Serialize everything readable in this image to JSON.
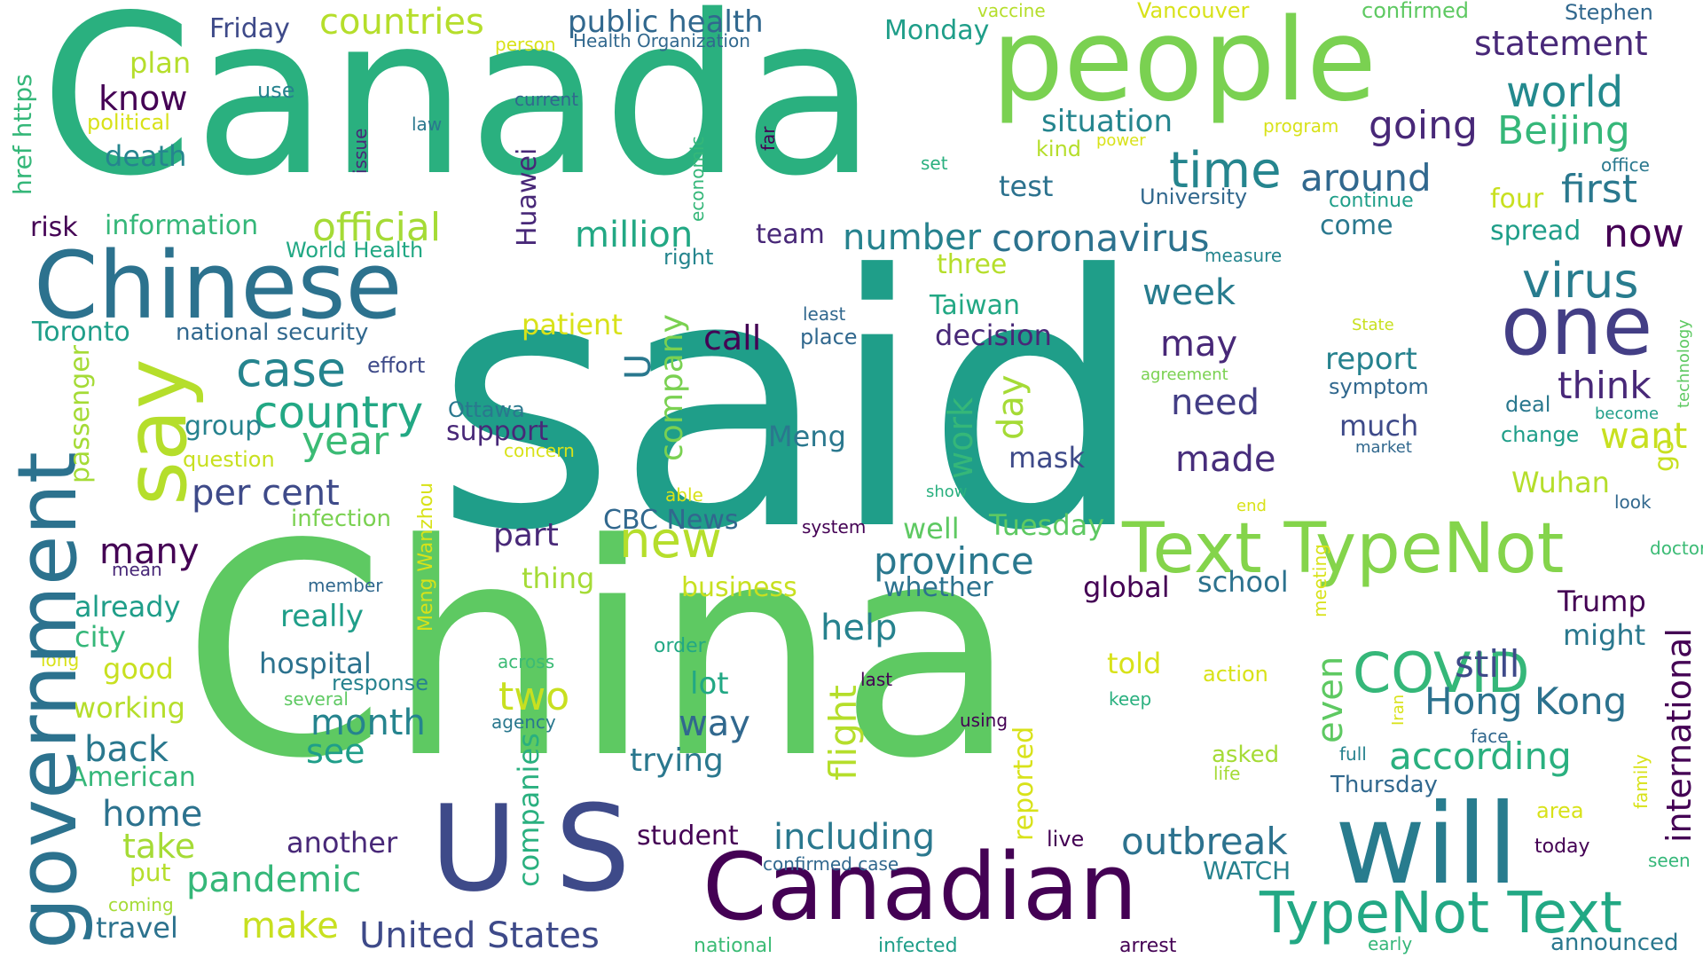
{
  "palette": {
    "p1": "#440154",
    "p2": "#482878",
    "p3": "#3e4a89",
    "p4": "#31688e",
    "p5": "#26828e",
    "p6": "#1f9e89",
    "p7": "#35b779",
    "p8": "#6ece58",
    "p9": "#b5de2b",
    "p10": "#d8e219"
  },
  "words": [
    {
      "text": "said"
    },
    {
      "text": "China"
    },
    {
      "text": "Canada"
    },
    {
      "text": "people"
    },
    {
      "text": "Chinese"
    },
    {
      "text": "government"
    },
    {
      "text": "say"
    },
    {
      "text": "one"
    },
    {
      "text": "will"
    },
    {
      "text": "U S"
    },
    {
      "text": "Canadian"
    },
    {
      "text": "Text TypeNot"
    },
    {
      "text": "TypeNot Text"
    },
    {
      "text": "COVID"
    },
    {
      "text": "new"
    },
    {
      "text": "time"
    },
    {
      "text": "case"
    },
    {
      "text": "country"
    },
    {
      "text": "virus"
    },
    {
      "text": "world"
    },
    {
      "text": "statement"
    },
    {
      "text": "Beijing"
    },
    {
      "text": "going"
    },
    {
      "text": "around"
    },
    {
      "text": "first"
    },
    {
      "text": "now"
    },
    {
      "text": "coronavirus"
    },
    {
      "text": "official"
    },
    {
      "text": "countries"
    },
    {
      "text": "public health"
    },
    {
      "text": "Friday"
    },
    {
      "text": "Monday"
    },
    {
      "text": "know"
    },
    {
      "text": "plan"
    },
    {
      "text": "death"
    },
    {
      "text": "year"
    },
    {
      "text": "per cent"
    },
    {
      "text": "many"
    },
    {
      "text": "million"
    },
    {
      "text": "number"
    },
    {
      "text": "province"
    },
    {
      "text": "Hong Kong"
    },
    {
      "text": "outbreak"
    },
    {
      "text": "including"
    },
    {
      "text": "United States"
    },
    {
      "text": "pandemic"
    },
    {
      "text": "month"
    },
    {
      "text": "back"
    },
    {
      "text": "home"
    },
    {
      "text": "two"
    },
    {
      "text": "see"
    },
    {
      "text": "make"
    },
    {
      "text": "take"
    },
    {
      "text": "help"
    },
    {
      "text": "part"
    },
    {
      "text": "made"
    },
    {
      "text": "need"
    },
    {
      "text": "may"
    },
    {
      "text": "week"
    },
    {
      "text": "think"
    },
    {
      "text": "want"
    },
    {
      "text": "still"
    },
    {
      "text": "according"
    },
    {
      "text": "situation"
    },
    {
      "text": "test"
    },
    {
      "text": "risk"
    },
    {
      "text": "information"
    },
    {
      "text": "Toronto"
    },
    {
      "text": "national security"
    },
    {
      "text": "World Health"
    },
    {
      "text": "Health Organization"
    },
    {
      "text": "call"
    },
    {
      "text": "decision"
    },
    {
      "text": "Taiwan"
    },
    {
      "text": "three"
    },
    {
      "text": "team"
    },
    {
      "text": "come"
    },
    {
      "text": "continue"
    },
    {
      "text": "University"
    },
    {
      "text": "spread"
    },
    {
      "text": "four"
    },
    {
      "text": "office"
    },
    {
      "text": "report"
    },
    {
      "text": "symptom"
    },
    {
      "text": "much"
    },
    {
      "text": "market"
    },
    {
      "text": "deal"
    },
    {
      "text": "become"
    },
    {
      "text": "change"
    },
    {
      "text": "Wuhan"
    },
    {
      "text": "look"
    },
    {
      "text": "doctor"
    },
    {
      "text": "Trump"
    },
    {
      "text": "might"
    },
    {
      "text": "told"
    },
    {
      "text": "action"
    },
    {
      "text": "way"
    },
    {
      "text": "lot"
    },
    {
      "text": "trying"
    },
    {
      "text": "student"
    },
    {
      "text": "another"
    },
    {
      "text": "support"
    },
    {
      "text": "group"
    },
    {
      "text": "question"
    },
    {
      "text": "Ottawa"
    },
    {
      "text": "concern"
    },
    {
      "text": "effort"
    },
    {
      "text": "patient"
    },
    {
      "text": "CBC News"
    },
    {
      "text": "business"
    },
    {
      "text": "thing"
    },
    {
      "text": "really"
    },
    {
      "text": "already"
    },
    {
      "text": "city"
    },
    {
      "text": "good"
    },
    {
      "text": "working"
    },
    {
      "text": "American"
    },
    {
      "text": "put"
    },
    {
      "text": "travel"
    },
    {
      "text": "coming"
    },
    {
      "text": "hospital"
    },
    {
      "text": "response"
    },
    {
      "text": "several"
    },
    {
      "text": "long"
    },
    {
      "text": "mean"
    },
    {
      "text": "member"
    },
    {
      "text": "infection"
    },
    {
      "text": "mask"
    },
    {
      "text": "Meng"
    },
    {
      "text": "well"
    },
    {
      "text": "Tuesday"
    },
    {
      "text": "whether"
    },
    {
      "text": "global"
    },
    {
      "text": "school"
    },
    {
      "text": "system"
    },
    {
      "text": "end"
    },
    {
      "text": "show"
    },
    {
      "text": "able"
    },
    {
      "text": "least"
    },
    {
      "text": "place"
    },
    {
      "text": "right"
    },
    {
      "text": "measure"
    },
    {
      "text": "State"
    },
    {
      "text": "agreement"
    },
    {
      "text": "vaccine"
    },
    {
      "text": "Vancouver"
    },
    {
      "text": "confirmed"
    },
    {
      "text": "Stephen"
    },
    {
      "text": "person"
    },
    {
      "text": "use"
    },
    {
      "text": "current"
    },
    {
      "text": "political"
    },
    {
      "text": "law"
    },
    {
      "text": "program"
    },
    {
      "text": "kind"
    },
    {
      "text": "power"
    },
    {
      "text": "set"
    },
    {
      "text": "WATCH"
    },
    {
      "text": "confirmed case"
    },
    {
      "text": "live"
    },
    {
      "text": "order"
    },
    {
      "text": "across"
    },
    {
      "text": "agency"
    },
    {
      "text": "last"
    },
    {
      "text": "using"
    },
    {
      "text": "keep"
    },
    {
      "text": "asked"
    },
    {
      "text": "life"
    },
    {
      "text": "full"
    },
    {
      "text": "Thursday"
    },
    {
      "text": "area"
    },
    {
      "text": "today"
    },
    {
      "text": "seen"
    },
    {
      "text": "face"
    },
    {
      "text": "announced"
    },
    {
      "text": "national"
    },
    {
      "text": "infected"
    },
    {
      "text": "arrest"
    },
    {
      "text": "early"
    },
    {
      "text": "international"
    },
    {
      "text": "flight"
    },
    {
      "text": "reported"
    },
    {
      "text": "even"
    },
    {
      "text": "day"
    },
    {
      "text": "work"
    },
    {
      "text": "company"
    },
    {
      "text": "companies"
    },
    {
      "text": "Huawei"
    },
    {
      "text": "passenger"
    },
    {
      "text": "href https"
    },
    {
      "text": "issue"
    },
    {
      "text": "economic"
    },
    {
      "text": "far"
    },
    {
      "text": "Meng Wanzhou"
    },
    {
      "text": "meeting"
    },
    {
      "text": "Iran"
    },
    {
      "text": "family"
    },
    {
      "text": "go"
    },
    {
      "text": "technology"
    },
    {
      "text": "U"
    }
  ]
}
